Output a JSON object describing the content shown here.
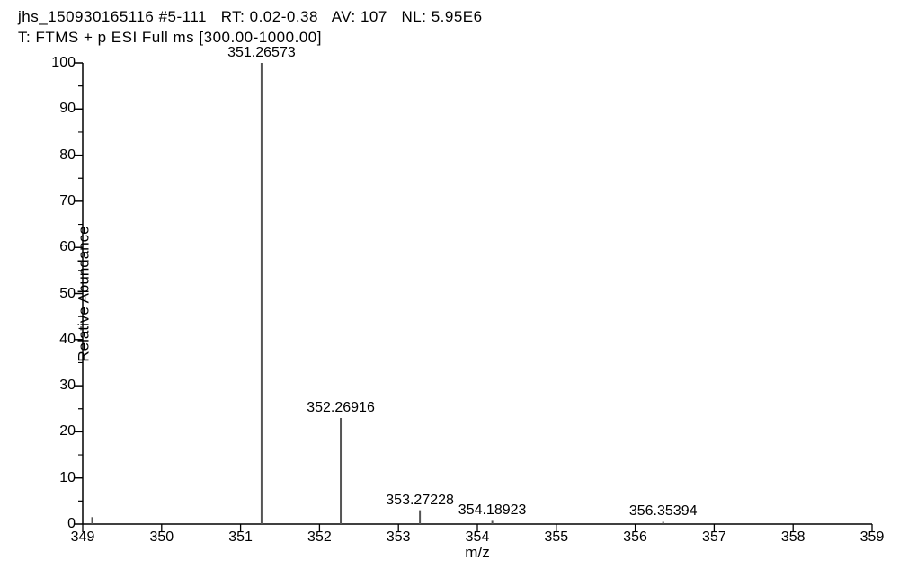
{
  "header": {
    "line1_parts": {
      "file_id": "jhs_150930165116 #5-111",
      "rt_label": "RT:",
      "rt_value": "0.02-0.38",
      "av_label": "AV:",
      "av_value": "107",
      "nl_label": "NL:",
      "nl_value": "5.95E6"
    },
    "line2": "T: FTMS + p ESI Full ms [300.00-1000.00]"
  },
  "spectrum": {
    "type": "mass-spectrum-sticks",
    "xlabel": "m/z",
    "ylabel": "Relative Abundance",
    "xlim": [
      349,
      359
    ],
    "ylim": [
      0,
      100
    ],
    "x_ticks_major": [
      349,
      350,
      351,
      352,
      353,
      354,
      355,
      356,
      357,
      358,
      359
    ],
    "x_minor_between": 0,
    "y_ticks_major": [
      0,
      10,
      20,
      30,
      40,
      50,
      60,
      70,
      80,
      90,
      100
    ],
    "y_minor_between": 1,
    "background_color": "#ffffff",
    "axis_color": "#000000",
    "peak_color": "#555555",
    "label_fontsize": 16,
    "title_fontsize": 17,
    "peak_line_width": 2,
    "peaks": [
      {
        "mz": 349.12,
        "intensity": 1.5,
        "label": ""
      },
      {
        "mz": 351.26573,
        "intensity": 100,
        "label": "351.26573"
      },
      {
        "mz": 352.26916,
        "intensity": 23,
        "label": "352.26916"
      },
      {
        "mz": 353.27228,
        "intensity": 3,
        "label": "353.27228"
      },
      {
        "mz": 354.18923,
        "intensity": 0.7,
        "label": "354.18923"
      },
      {
        "mz": 356.35394,
        "intensity": 0.5,
        "label": "356.35394"
      }
    ]
  }
}
